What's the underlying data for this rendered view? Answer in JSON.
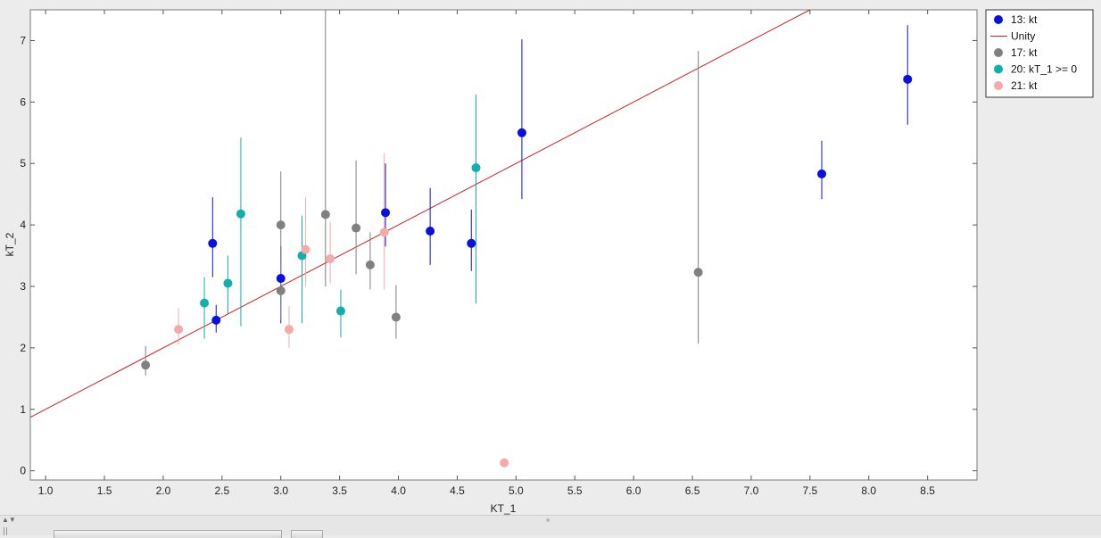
{
  "chart_data": {
    "type": "scatter",
    "xlabel": "KT_1",
    "ylabel": "kT_2",
    "xlim": [
      0.87,
      8.92
    ],
    "ylim": [
      -0.15,
      7.5
    ],
    "xticks": [
      "1.0",
      "1.5",
      "2.0",
      "2.5",
      "3.0",
      "3.5",
      "4.0",
      "4.5",
      "5.0",
      "5.5",
      "6.0",
      "6.5",
      "7.0",
      "7.5",
      "8.0",
      "8.5"
    ],
    "yticks": [
      "0",
      "1",
      "2",
      "3",
      "4",
      "5",
      "6",
      "7"
    ],
    "grid": false,
    "legend_position": "outside-top-right",
    "unity_line": {
      "name": "Unity",
      "color": "#cc2222",
      "slope": 1,
      "intercept": 0
    },
    "series": [
      {
        "name": "13: kt",
        "color": "#0a10e0",
        "points": [
          {
            "x": 2.42,
            "y": 3.7,
            "lo": 3.15,
            "hi": 4.45
          },
          {
            "x": 2.45,
            "y": 2.45,
            "lo": 2.25,
            "hi": 2.7
          },
          {
            "x": 3.0,
            "y": 3.13,
            "lo": 2.4,
            "hi": 3.65
          },
          {
            "x": 3.89,
            "y": 4.2,
            "lo": 3.65,
            "hi": 5.0
          },
          {
            "x": 4.27,
            "y": 3.9,
            "lo": 3.35,
            "hi": 4.6
          },
          {
            "x": 4.62,
            "y": 3.7,
            "lo": 3.25,
            "hi": 4.25
          },
          {
            "x": 5.05,
            "y": 5.5,
            "lo": 4.42,
            "hi": 7.02
          },
          {
            "x": 7.6,
            "y": 4.83,
            "lo": 4.42,
            "hi": 5.37
          },
          {
            "x": 8.33,
            "y": 6.37,
            "lo": 5.63,
            "hi": 7.25
          }
        ]
      },
      {
        "name": "17: kt",
        "color": "#808080",
        "points": [
          {
            "x": 1.85,
            "y": 1.72,
            "lo": 1.55,
            "hi": 2.03
          },
          {
            "x": 3.0,
            "y": 4.0,
            "lo": 3.4,
            "hi": 4.87
          },
          {
            "x": 3.0,
            "y": 2.93,
            "lo": 2.45,
            "hi": 3.65
          },
          {
            "x": 3.38,
            "y": 4.17,
            "lo": 3.0,
            "hi": 7.5
          },
          {
            "x": 3.64,
            "y": 3.95,
            "lo": 3.2,
            "hi": 5.05
          },
          {
            "x": 3.76,
            "y": 3.35,
            "lo": 2.95,
            "hi": 3.88
          },
          {
            "x": 3.98,
            "y": 2.5,
            "lo": 2.15,
            "hi": 3.02
          },
          {
            "x": 6.55,
            "y": 3.23,
            "lo": 2.07,
            "hi": 6.83
          }
        ]
      },
      {
        "name": "20: kT_1 >= 0",
        "color": "#10b0ad",
        "points": [
          {
            "x": 2.35,
            "y": 2.73,
            "lo": 2.15,
            "hi": 3.15
          },
          {
            "x": 2.55,
            "y": 3.05,
            "lo": 2.55,
            "hi": 3.5
          },
          {
            "x": 2.66,
            "y": 4.18,
            "lo": 2.35,
            "hi": 5.42
          },
          {
            "x": 3.18,
            "y": 3.5,
            "lo": 2.4,
            "hi": 4.15
          },
          {
            "x": 3.51,
            "y": 2.6,
            "lo": 2.17,
            "hi": 2.95
          },
          {
            "x": 4.66,
            "y": 4.93,
            "lo": 2.72,
            "hi": 6.12
          }
        ]
      },
      {
        "name": "21: kt",
        "color": "#f5aaaa",
        "points": [
          {
            "x": 2.13,
            "y": 2.3,
            "lo": 2.05,
            "hi": 2.65
          },
          {
            "x": 3.07,
            "y": 2.3,
            "lo": 2.0,
            "hi": 2.68
          },
          {
            "x": 3.21,
            "y": 3.6,
            "lo": 3.0,
            "hi": 4.45
          },
          {
            "x": 3.42,
            "y": 3.45,
            "lo": 3.05,
            "hi": 4.05
          },
          {
            "x": 3.88,
            "y": 3.88,
            "lo": 2.95,
            "hi": 5.17
          },
          {
            "x": 4.9,
            "y": 0.13,
            "lo": 0.13,
            "hi": 0.13
          }
        ]
      }
    ]
  }
}
